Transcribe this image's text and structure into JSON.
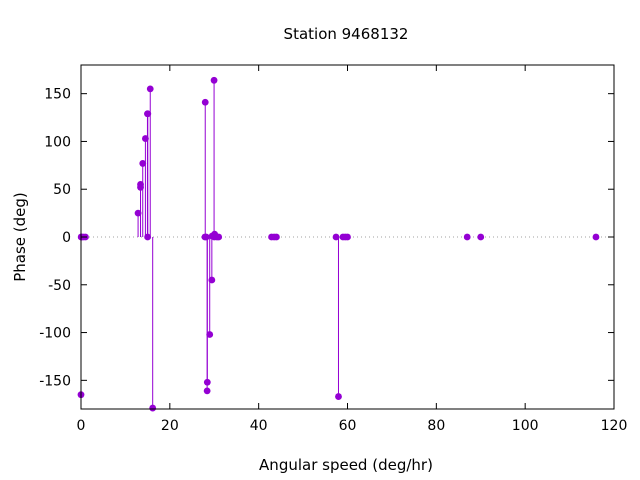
{
  "chart_data": {
    "type": "scatter",
    "style": "impulses-with-points",
    "title": "Station 9468132",
    "xlabel": "Angular speed (deg/hr)",
    "ylabel": "Phase (deg)",
    "xlim": [
      0,
      120
    ],
    "ylim": [
      -180,
      180
    ],
    "xticks": [
      0,
      20,
      40,
      60,
      80,
      100,
      120
    ],
    "yticks": [
      -150,
      -100,
      -50,
      0,
      50,
      100,
      150
    ],
    "zero_line": true,
    "grid": false,
    "color": "#9400d3",
    "series": [
      {
        "points": [
          [
            0.0,
            -165
          ],
          [
            0.04,
            0
          ],
          [
            0.08,
            0
          ],
          [
            0.5,
            0
          ],
          [
            1.0,
            0
          ],
          [
            12.85,
            25
          ],
          [
            13.4,
            52
          ],
          [
            13.4,
            55
          ],
          [
            13.9,
            77
          ],
          [
            14.5,
            103
          ],
          [
            14.96,
            129
          ],
          [
            15.04,
            129
          ],
          [
            15.0,
            0
          ],
          [
            15.59,
            155
          ],
          [
            16.14,
            -179
          ],
          [
            27.97,
            141
          ],
          [
            27.9,
            0
          ],
          [
            28.2,
            0
          ],
          [
            28.4,
            -161
          ],
          [
            28.44,
            -152
          ],
          [
            28.98,
            -102
          ],
          [
            29.46,
            -45
          ],
          [
            29.53,
            1
          ],
          [
            29.96,
            164
          ],
          [
            30.0,
            0
          ],
          [
            30.08,
            3
          ],
          [
            30.6,
            0
          ],
          [
            31.0,
            0
          ],
          [
            42.9,
            0
          ],
          [
            43.48,
            0
          ],
          [
            44.0,
            0
          ],
          [
            57.42,
            0
          ],
          [
            57.97,
            -167
          ],
          [
            58.98,
            0
          ],
          [
            59.5,
            0
          ],
          [
            60.0,
            0
          ],
          [
            86.95,
            0
          ],
          [
            90.0,
            0
          ],
          [
            115.94,
            0
          ]
        ]
      }
    ]
  }
}
